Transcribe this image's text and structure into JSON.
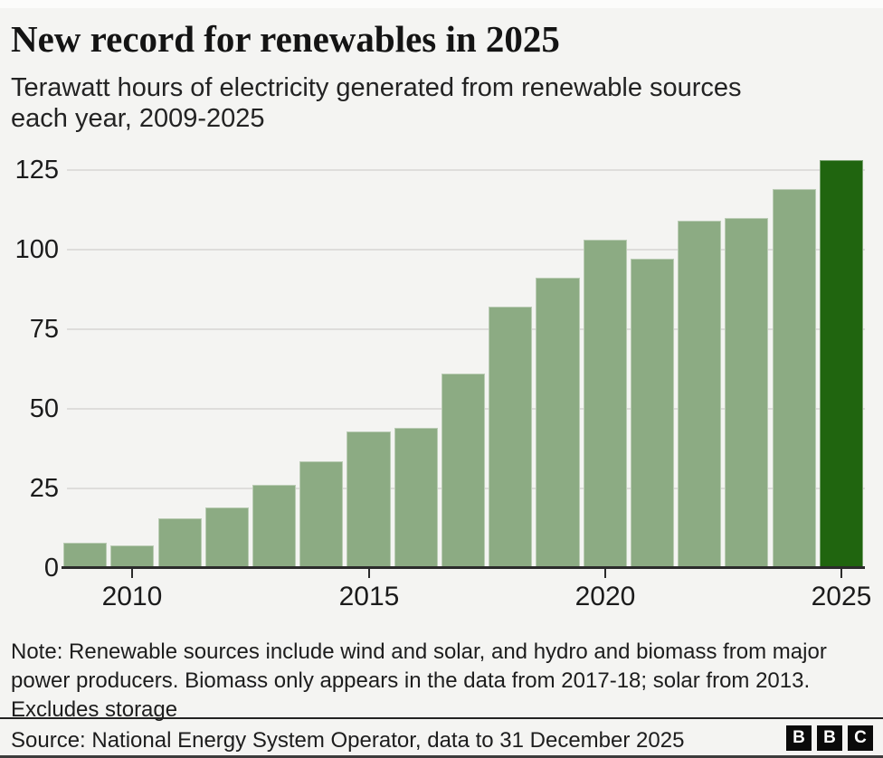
{
  "header": {
    "title": "New record for renewables in 2025",
    "subtitle": "Terawatt hours of electricity generated from renewable sources each year, 2009-2025"
  },
  "chart_data": {
    "type": "bar",
    "title": "New record for renewables in 2025",
    "subtitle": "Terawatt hours of electricity generated from renewable sources each year, 2009-2025",
    "categories": [
      2009,
      2010,
      2011,
      2012,
      2013,
      2014,
      2015,
      2016,
      2017,
      2018,
      2019,
      2020,
      2021,
      2022,
      2023,
      2024,
      2025
    ],
    "values": [
      8,
      7,
      15.5,
      19,
      26,
      33.5,
      43,
      44,
      61,
      82,
      91,
      103,
      97,
      109,
      110,
      119,
      128
    ],
    "xlabel": "",
    "ylabel": "Terawatt hours",
    "ylim": [
      0,
      130
    ],
    "yticks": [
      0,
      25,
      50,
      75,
      100,
      125
    ],
    "xticks": [
      2010,
      2015,
      2020,
      2025
    ],
    "grid": true,
    "legend_position": "none",
    "highlight_category": 2025,
    "bar_color": "#8cab83",
    "highlight_color": "#20650f"
  },
  "note": {
    "lines": [
      "Note: Renewable sources include wind and solar, and hydro and biomass from major",
      "power producers. Biomass only appears in the data from 2017-18; solar from 2013.",
      "Excludes storage"
    ]
  },
  "footer": {
    "source": "Source: National Energy System Operator, data to 31 December 2025",
    "logo_letters": [
      "B",
      "B",
      "C"
    ]
  },
  "colors": {
    "background": "#f4f4f2",
    "bar": "#8cab83",
    "bar_highlight": "#20650f",
    "gridline": "#dedddb",
    "axis": "#2b2b2b",
    "text": "#1b1b1b"
  }
}
